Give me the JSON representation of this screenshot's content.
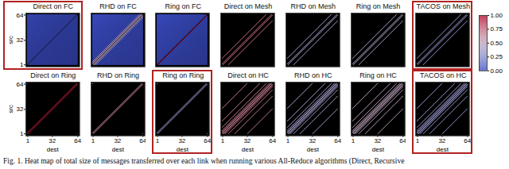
{
  "chart_data": [
    {
      "type": "heatmap",
      "title": "Direct on FC",
      "ylabel": "src",
      "xlim": [
        1,
        64
      ],
      "ylim": [
        1,
        64
      ],
      "yticks": [
        1,
        32,
        64
      ],
      "color": "#b22222",
      "background": 0.0,
      "bands": [
        {
          "offset": 0,
          "value": null
        }
      ]
    },
    {
      "type": "heatmap",
      "title": "RHD on FC",
      "xlim": [
        1,
        64
      ],
      "ylim": [
        1,
        64
      ],
      "background": 0.0,
      "bands": [
        {
          "offset": 0,
          "value": null
        },
        {
          "offset": 1,
          "value": 0.5
        },
        {
          "offset": -1,
          "value": 0.5
        },
        {
          "offset": 2,
          "value": 0.5
        },
        {
          "offset": -2,
          "value": 0.5
        },
        {
          "offset": 4,
          "value": 0.5
        },
        {
          "offset": -4,
          "value": 0.5
        }
      ]
    },
    {
      "type": "heatmap",
      "title": "Ring on FC",
      "xlim": [
        1,
        64
      ],
      "ylim": [
        1,
        64
      ],
      "background": 0.0,
      "bands": [
        {
          "offset": 0,
          "value": null
        },
        {
          "offset": 1,
          "value": 1.0
        }
      ]
    },
    {
      "type": "heatmap",
      "title": "Direct on Mesh",
      "xlim": [
        1,
        64
      ],
      "ylim": [
        1,
        64
      ],
      "background": null,
      "bands": [
        {
          "offset": 1,
          "value": 0.75
        },
        {
          "offset": -1,
          "value": 0.75
        },
        {
          "offset": 8,
          "value": 0.75
        },
        {
          "offset": -8,
          "value": 0.75
        }
      ]
    },
    {
      "type": "heatmap",
      "title": "RHD on Mesh",
      "xlim": [
        1,
        64
      ],
      "ylim": [
        1,
        64
      ],
      "background": null,
      "bands": [
        {
          "offset": 1,
          "value": 0.35
        },
        {
          "offset": -1,
          "value": 0.35
        },
        {
          "offset": 8,
          "value": 0.35
        },
        {
          "offset": -8,
          "value": 0.35
        }
      ]
    },
    {
      "type": "heatmap",
      "title": "Ring on Mesh",
      "xlim": [
        1,
        64
      ],
      "ylim": [
        1,
        64
      ],
      "background": null,
      "bands": [
        {
          "offset": 1,
          "value": 0.4
        },
        {
          "offset": -1,
          "value": 0.4
        },
        {
          "offset": 8,
          "value": 0.4
        },
        {
          "offset": -8,
          "value": 0.4
        }
      ]
    },
    {
      "type": "heatmap",
      "title": "TACOS on Mesh",
      "xlim": [
        1,
        64
      ],
      "ylim": [
        1,
        64
      ],
      "color": "#b22222",
      "background": null,
      "bands": [
        {
          "offset": 1,
          "value": 0.3
        },
        {
          "offset": -1,
          "value": 0.3
        },
        {
          "offset": 8,
          "value": 0.3
        },
        {
          "offset": -8,
          "value": 0.3
        }
      ],
      "colorbar": {
        "range": [
          0,
          1
        ],
        "ticks": [
          {
            "value": 0,
            "label": "0.00"
          },
          {
            "value": 0.25,
            "label": "0.25"
          },
          {
            "value": 0.5,
            "label": "0.50"
          },
          {
            "value": 0.75,
            "label": "0.75"
          },
          {
            "value": 1,
            "label": "1.00"
          }
        ]
      }
    },
    {
      "type": "heatmap",
      "title": "Direct on Ring",
      "xlabel": "dest",
      "ylabel": "src",
      "xlim": [
        1,
        64
      ],
      "ylim": [
        1,
        64
      ],
      "xticks": [
        1,
        32,
        64
      ],
      "yticks": [
        1,
        32,
        64
      ],
      "background": null,
      "bands": [
        {
          "offset": 1,
          "value": 0.95
        },
        {
          "offset": -1,
          "value": 0.95
        },
        {
          "offset": 63,
          "value": 0.95
        },
        {
          "offset": -63,
          "value": 0.95
        }
      ]
    },
    {
      "type": "heatmap",
      "title": "RHD on Ring",
      "xlabel": "dest",
      "xlim": [
        1,
        64
      ],
      "ylim": [
        1,
        64
      ],
      "xticks": [
        1,
        32,
        64
      ],
      "background": null,
      "bands": [
        {
          "offset": 1,
          "value": 0.65
        },
        {
          "offset": -1,
          "value": 0.65
        },
        {
          "offset": 63,
          "value": 0.65
        },
        {
          "offset": -63,
          "value": 0.65
        }
      ]
    },
    {
      "type": "heatmap",
      "title": "Ring on Ring",
      "xlabel": "dest",
      "xlim": [
        1,
        64
      ],
      "ylim": [
        1,
        64
      ],
      "xticks": [
        1,
        32,
        64
      ],
      "color": "#b22222",
      "background": null,
      "bands": [
        {
          "offset": 1,
          "value": 0.3
        },
        {
          "offset": -1,
          "value": 0.3
        },
        {
          "offset": 63,
          "value": 0.3
        },
        {
          "offset": -63,
          "value": 0.3
        }
      ]
    },
    {
      "type": "heatmap",
      "title": "Direct on HC",
      "xlabel": "dest",
      "xlim": [
        1,
        64
      ],
      "ylim": [
        1,
        64
      ],
      "xticks": [
        1,
        32,
        64
      ],
      "background": null,
      "bands": [
        {
          "offset": 1,
          "value": 0.7
        },
        {
          "offset": -1,
          "value": 0.7
        },
        {
          "offset": 2,
          "value": 0.7
        },
        {
          "offset": -2,
          "value": 0.7
        },
        {
          "offset": 4,
          "value": 0.7
        },
        {
          "offset": -4,
          "value": 0.7
        },
        {
          "offset": 8,
          "value": 0.7
        },
        {
          "offset": -8,
          "value": 0.7
        },
        {
          "offset": 16,
          "value": 0.7
        },
        {
          "offset": -16,
          "value": 0.7
        },
        {
          "offset": 32,
          "value": 0.7
        },
        {
          "offset": -32,
          "value": 0.7
        }
      ]
    },
    {
      "type": "heatmap",
      "title": "RHD on HC",
      "xlabel": "dest",
      "xlim": [
        1,
        64
      ],
      "ylim": [
        1,
        64
      ],
      "xticks": [
        1,
        32,
        64
      ],
      "background": null,
      "bands": [
        {
          "offset": 1,
          "value": 0.35
        },
        {
          "offset": -1,
          "value": 0.35
        },
        {
          "offset": 2,
          "value": 0.35
        },
        {
          "offset": -2,
          "value": 0.35
        },
        {
          "offset": 4,
          "value": 0.35
        },
        {
          "offset": -4,
          "value": 0.35
        },
        {
          "offset": 8,
          "value": 0.35
        },
        {
          "offset": -8,
          "value": 0.35
        },
        {
          "offset": 16,
          "value": 0.35
        },
        {
          "offset": -16,
          "value": 0.35
        },
        {
          "offset": 32,
          "value": 0.35
        },
        {
          "offset": -32,
          "value": 0.35
        }
      ]
    },
    {
      "type": "heatmap",
      "title": "Ring on HC",
      "xlabel": "dest",
      "xlim": [
        1,
        64
      ],
      "ylim": [
        1,
        64
      ],
      "xticks": [
        1,
        32,
        64
      ],
      "background": null,
      "bands": [
        {
          "offset": 1,
          "value": 0.5
        },
        {
          "offset": -1,
          "value": 0.5
        },
        {
          "offset": 2,
          "value": 0.5
        },
        {
          "offset": -2,
          "value": 0.5
        },
        {
          "offset": 4,
          "value": 0.5
        },
        {
          "offset": -4,
          "value": 0.5
        },
        {
          "offset": 8,
          "value": 0.5
        },
        {
          "offset": -8,
          "value": 0.5
        },
        {
          "offset": 16,
          "value": 0.5
        },
        {
          "offset": -16,
          "value": 0.5
        },
        {
          "offset": 32,
          "value": 0.5
        },
        {
          "offset": -32,
          "value": 0.5
        }
      ]
    },
    {
      "type": "heatmap",
      "title": "TACOS on HC",
      "xlabel": "dest",
      "xlim": [
        1,
        64
      ],
      "ylim": [
        1,
        64
      ],
      "xticks": [
        1,
        32,
        64
      ],
      "color": "#b22222",
      "background": null,
      "bands": [
        {
          "offset": 1,
          "value": 0.3
        },
        {
          "offset": -1,
          "value": 0.3
        },
        {
          "offset": 2,
          "value": 0.3
        },
        {
          "offset": -2,
          "value": 0.3
        },
        {
          "offset": 4,
          "value": 0.3
        },
        {
          "offset": -4,
          "value": 0.3
        },
        {
          "offset": 8,
          "value": 0.3
        },
        {
          "offset": -8,
          "value": 0.3
        },
        {
          "offset": 16,
          "value": 0.3
        },
        {
          "offset": -16,
          "value": 0.3
        },
        {
          "offset": 32,
          "value": 0.3
        },
        {
          "offset": -32,
          "value": 0.3
        }
      ]
    }
  ],
  "caption": "Fig. 1.   Heat map of total size of messages transferred over each link when running various All-Reduce algorithms (Direct, Recursive"
}
